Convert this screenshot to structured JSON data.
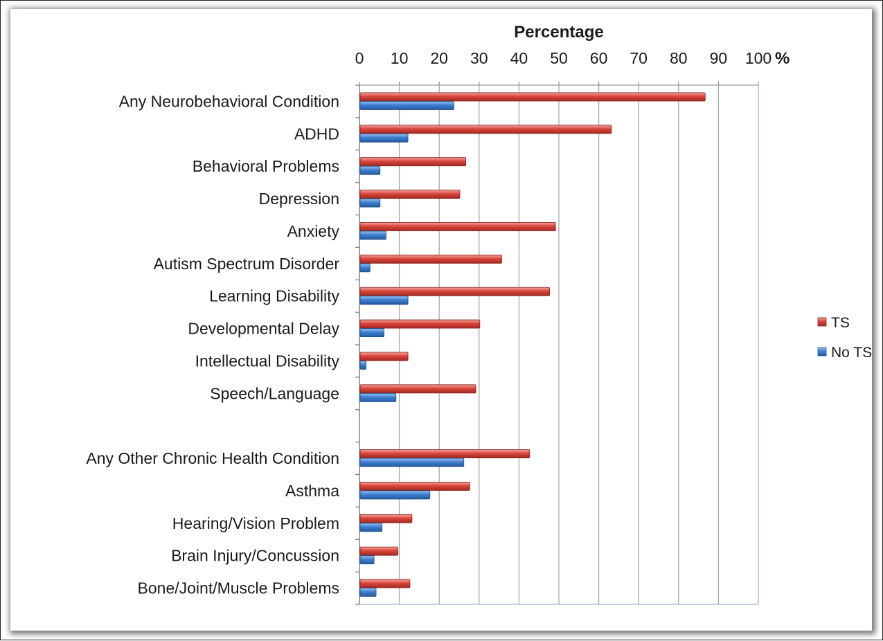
{
  "chart_data": {
    "type": "bar",
    "orientation": "horizontal",
    "title": "Percentage",
    "xlabel": "Percentage",
    "unit_symbol": "%",
    "xlim": [
      0,
      100
    ],
    "ticks": [
      0,
      10,
      20,
      30,
      40,
      50,
      60,
      70,
      80,
      90,
      100
    ],
    "tick_labels": [
      "0",
      "10",
      "20",
      "30",
      "40",
      "50",
      "60",
      "70",
      "80",
      "90",
      "100"
    ],
    "grid": true,
    "legend_position": "right",
    "categories": [
      "Any Neurobehavioral Condition",
      "ADHD",
      "Behavioral Problems",
      "Depression",
      "Anxiety",
      "Autism Spectrum Disorder",
      "Learning Disability",
      "Developmental Delay",
      "Intellectual Disability",
      "Speech/Language",
      "",
      "Any Other Chronic Health Condition",
      "Asthma",
      "Hearing/Vision Problem",
      "Brain Injury/Concussion",
      "Bone/Joint/Muscle Problems"
    ],
    "series": [
      {
        "name": "TS",
        "color": "#c0392b",
        "values": [
          86.5,
          63,
          26.5,
          25,
          49,
          35.5,
          47.5,
          30,
          12,
          29,
          null,
          42.5,
          27.5,
          13,
          9.5,
          12.5
        ]
      },
      {
        "name": "No TS",
        "color": "#2e6fbe",
        "values": [
          23.5,
          12,
          5,
          5,
          6.5,
          2.5,
          12,
          6,
          1.5,
          9,
          null,
          26,
          17.5,
          5.5,
          3.5,
          4
        ]
      }
    ]
  }
}
